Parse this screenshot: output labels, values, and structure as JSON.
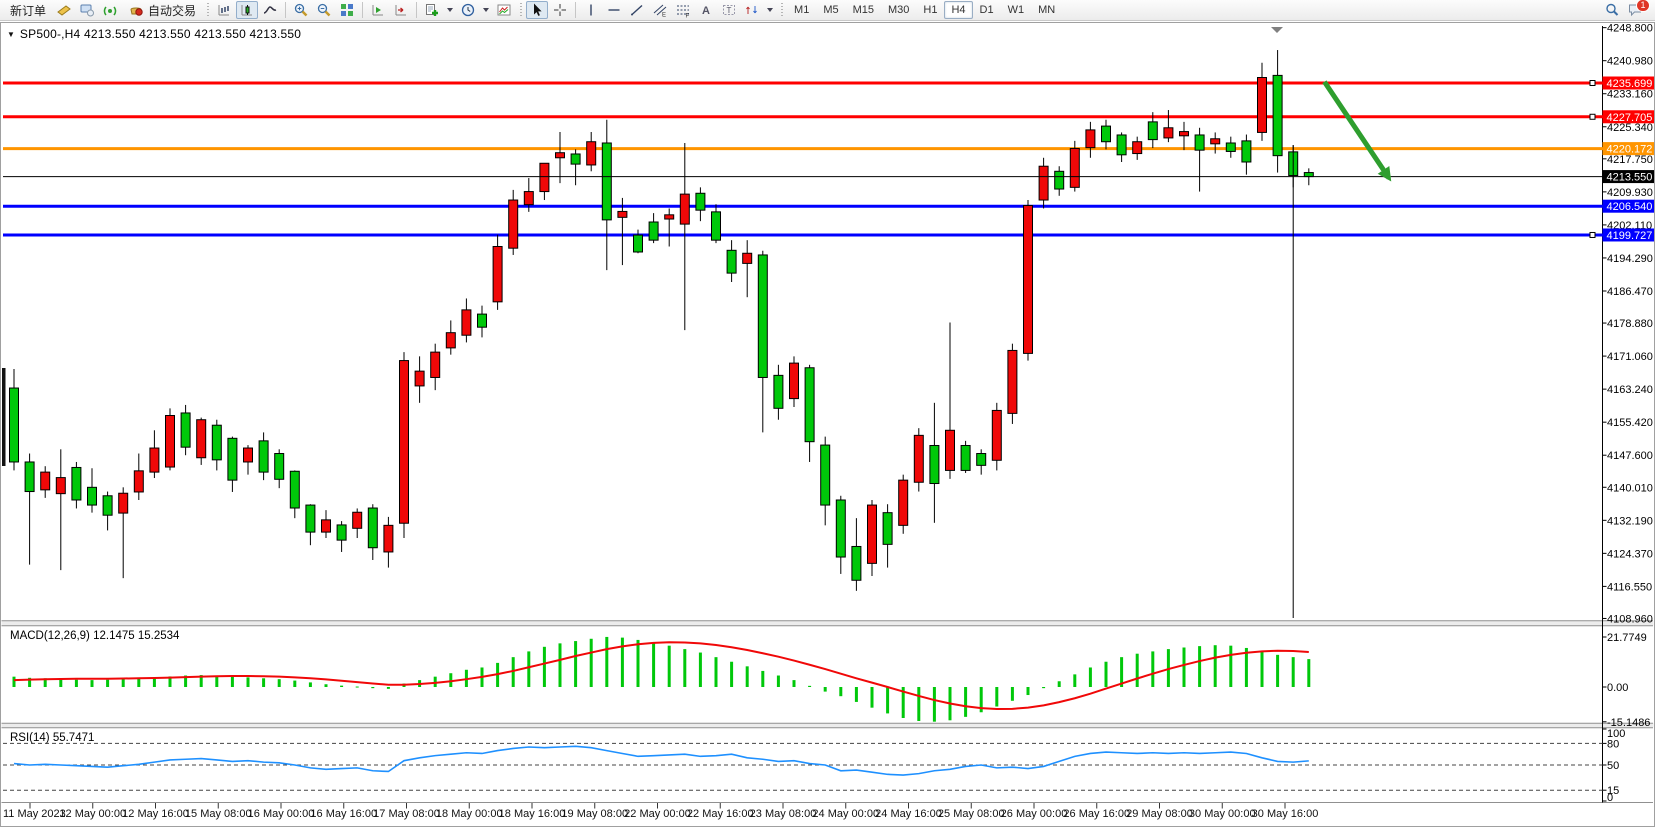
{
  "toolbar": {
    "new_order_label": "新订单",
    "auto_trading_label": "自动交易",
    "timeframes": [
      "M1",
      "M5",
      "M15",
      "M30",
      "H1",
      "H4",
      "D1",
      "W1",
      "MN"
    ],
    "active_timeframe": "H4",
    "notification_count": "1"
  },
  "window": {
    "title_symbol": "SP500-,H4",
    "title_ohlc": "4213.550 4213.550 4213.550 4213.550"
  },
  "chart_data": {
    "type": "candlestick",
    "symbol": "SP500-",
    "timeframe": "H4",
    "color_convention": "red = bullish, green = bearish (CN convention)",
    "colors": {
      "up": "#f00808",
      "down": "#00c80a",
      "wick": "#000000",
      "macd_histogram": "#00c80a",
      "macd_signal": "#f00808",
      "rsi_line": "#1e90ff"
    },
    "price_axis_ticks": [
      "4248.800",
      "4240.980",
      "4233.160",
      "4225.340",
      "4217.750",
      "4209.930",
      "4202.110",
      "4194.290",
      "4186.470",
      "4178.880",
      "4171.060",
      "4163.240",
      "4155.420",
      "4147.600",
      "4140.010",
      "4132.190",
      "4124.370",
      "4116.550",
      "4108.960"
    ],
    "time_axis_labels": [
      "11 May 2023",
      "12 May 00:00",
      "12 May 16:00",
      "15 May 08:00",
      "16 May 00:00",
      "16 May 16:00",
      "17 May 08:00",
      "18 May 00:00",
      "18 May 16:00",
      "19 May 08:00",
      "22 May 00:00",
      "22 May 16:00",
      "23 May 08:00",
      "24 May 00:00",
      "24 May 16:00",
      "25 May 08:00",
      "26 May 00:00",
      "26 May 16:00",
      "29 May 08:00",
      "30 May 00:00",
      "30 May 16:00"
    ],
    "candles_ohlc": [
      [
        4163.5,
        4168.0,
        4144.0,
        4146.0
      ],
      [
        4146.0,
        4148.0,
        4121.7,
        4139.0
      ],
      [
        4139.4,
        4145.0,
        4137.5,
        4143.6
      ],
      [
        4138.5,
        4149.0,
        4120.4,
        4142.3
      ],
      [
        4144.7,
        4146.0,
        4135.0,
        4137.0
      ],
      [
        4140.0,
        4144.5,
        4134.0,
        4135.8
      ],
      [
        4138.0,
        4139.0,
        4129.8,
        4133.4
      ],
      [
        4133.9,
        4140.0,
        4118.5,
        4138.6
      ],
      [
        4138.9,
        4148.0,
        4137.0,
        4143.9
      ],
      [
        4143.6,
        4153.5,
        4142.2,
        4149.3
      ],
      [
        4144.8,
        4158.7,
        4144.0,
        4157.0
      ],
      [
        4157.6,
        4159.5,
        4147.6,
        4149.5
      ],
      [
        4147.0,
        4156.5,
        4145.3,
        4156.0
      ],
      [
        4154.7,
        4156.0,
        4144.0,
        4146.5
      ],
      [
        4151.6,
        4152.0,
        4138.9,
        4141.7
      ],
      [
        4146.0,
        4150.0,
        4143.0,
        4149.3
      ],
      [
        4151.0,
        4153.0,
        4141.7,
        4143.6
      ],
      [
        4148.0,
        4149.0,
        4139.8,
        4141.9
      ],
      [
        4143.8,
        4144.0,
        4132.7,
        4135.1
      ],
      [
        4135.8,
        4136.0,
        4126.3,
        4129.4
      ],
      [
        4129.4,
        4134.6,
        4128.0,
        4132.3
      ],
      [
        4131.1,
        4132.0,
        4124.7,
        4127.5
      ],
      [
        4130.3,
        4135.0,
        4128.0,
        4134.1
      ],
      [
        4135.1,
        4136.0,
        4122.8,
        4125.7
      ],
      [
        4124.7,
        4133.0,
        4121.0,
        4131.0
      ],
      [
        4131.5,
        4172.0,
        4128.0,
        4170.0
      ],
      [
        4164.0,
        4171.0,
        4160.0,
        4167.5
      ],
      [
        4166.0,
        4174.0,
        4163.0,
        4172.0
      ],
      [
        4173.0,
        4179.5,
        4171.4,
        4176.6
      ],
      [
        4176.0,
        4184.7,
        4174.3,
        4182.0
      ],
      [
        4181.0,
        4183.0,
        4175.5,
        4177.9
      ],
      [
        4183.9,
        4199.8,
        4182.0,
        4197.0
      ],
      [
        4196.6,
        4210.4,
        4195.0,
        4208.0
      ],
      [
        4206.9,
        4213.2,
        4205.2,
        4210.0
      ],
      [
        4210.0,
        4216.7,
        4208.0,
        4216.7
      ],
      [
        4218.0,
        4224.1,
        4212.0,
        4219.2
      ],
      [
        4218.9,
        4220.0,
        4211.5,
        4216.5
      ],
      [
        4216.3,
        4224.1,
        4214.8,
        4221.8
      ],
      [
        4221.5,
        4227.0,
        4191.4,
        4203.3
      ],
      [
        4203.9,
        4208.5,
        4192.6,
        4205.3
      ],
      [
        4199.7,
        4201.0,
        4195.4,
        4195.7
      ],
      [
        4202.8,
        4204.9,
        4197.8,
        4198.5
      ],
      [
        4203.5,
        4206.0,
        4197.0,
        4204.5
      ],
      [
        4202.3,
        4221.5,
        4177.2,
        4209.4
      ],
      [
        4209.6,
        4211.0,
        4203.0,
        4205.6
      ],
      [
        4205.2,
        4207.0,
        4197.8,
        4198.5
      ],
      [
        4196.1,
        4198.5,
        4188.6,
        4190.7
      ],
      [
        4193.0,
        4198.5,
        4185.0,
        4195.4
      ],
      [
        4195.0,
        4196.0,
        4153.0,
        4166.0
      ],
      [
        4166.5,
        4169.0,
        4156.0,
        4158.7
      ],
      [
        4161.0,
        4171.0,
        4159.0,
        4169.4
      ],
      [
        4168.3,
        4169.0,
        4146.0,
        4150.8
      ],
      [
        4150.0,
        4152.0,
        4131.0,
        4135.8
      ],
      [
        4137.0,
        4138.0,
        4119.5,
        4123.5
      ],
      [
        4126.0,
        4132.7,
        4115.5,
        4118.0
      ],
      [
        4122.0,
        4137.0,
        4119.0,
        4135.8
      ],
      [
        4134.0,
        4136.0,
        4121.0,
        4126.5
      ],
      [
        4131.0,
        4143.0,
        4129.0,
        4141.7
      ],
      [
        4141.2,
        4154.0,
        4139.0,
        4152.3
      ],
      [
        4149.9,
        4160.0,
        4131.6,
        4140.9
      ],
      [
        4144.0,
        4179.0,
        4142.0,
        4153.5
      ],
      [
        4149.9,
        4151.0,
        4143.4,
        4144.0
      ],
      [
        4148.0,
        4149.0,
        4143.0,
        4145.2
      ],
      [
        4146.4,
        4160.0,
        4144.0,
        4158.2
      ],
      [
        4157.5,
        4174.0,
        4155.0,
        4172.4
      ],
      [
        4171.7,
        4208.0,
        4170.0,
        4206.7
      ],
      [
        4208.0,
        4218.0,
        4206.0,
        4216.0
      ],
      [
        4214.8,
        4216.0,
        4209.0,
        4210.6
      ],
      [
        4211.0,
        4222.0,
        4210.0,
        4220.2
      ],
      [
        4220.4,
        4226.5,
        4218.0,
        4224.6
      ],
      [
        4225.5,
        4227.0,
        4220.0,
        4221.8
      ],
      [
        4223.4,
        4224.0,
        4217.0,
        4218.7
      ],
      [
        4219.0,
        4223.0,
        4217.5,
        4221.8
      ],
      [
        4226.5,
        4228.8,
        4220.3,
        4222.3
      ],
      [
        4222.7,
        4229.3,
        4221.7,
        4225.1
      ],
      [
        4223.2,
        4226.5,
        4219.8,
        4224.2
      ],
      [
        4223.4,
        4225.1,
        4210.0,
        4219.8
      ],
      [
        4221.3,
        4224.0,
        4219.0,
        4222.5
      ],
      [
        4221.5,
        4223.0,
        4218.0,
        4219.5
      ],
      [
        4222.0,
        4223.5,
        4214.0,
        4217.0
      ],
      [
        4224.0,
        4240.5,
        4222.0,
        4237.0
      ],
      [
        4237.5,
        4243.5,
        4214.5,
        4218.5
      ],
      [
        4219.4,
        4221.0,
        4211.0,
        4213.8
      ],
      [
        4214.5,
        4215.5,
        4211.5,
        4213.55
      ]
    ],
    "current_price": {
      "value": 4213.55,
      "label": "4213.550",
      "color": "#000000"
    },
    "horizontal_lines": [
      {
        "price": 4235.699,
        "label": "4235.699",
        "color": "#ff0000",
        "selected": true
      },
      {
        "price": 4227.705,
        "label": "4227.705",
        "color": "#ff0000",
        "selected": true
      },
      {
        "price": 4220.172,
        "label": "4220.172",
        "color": "#ff9500",
        "selected": false
      },
      {
        "price": 4206.54,
        "label": "4206.540",
        "color": "#0000ff",
        "selected": false
      },
      {
        "price": 4199.727,
        "label": "4199.727",
        "color": "#0000ff",
        "selected": true
      }
    ],
    "vertical_line": {
      "bar": 82,
      "price_top": 4221,
      "price_bottom": 4109
    },
    "arrow_annotation": {
      "from_bar": 84,
      "from_price": 4236,
      "to_bar": 88.4,
      "to_price": 4212,
      "color": "#2e9e2e"
    },
    "macd": {
      "name": "MACD(12,26,9)",
      "main_value": "12.1475",
      "signal_value": "15.2534",
      "axis_ticks": [
        "21.7749",
        "0.00",
        "-15.1486"
      ],
      "histogram": [
        4.5,
        4.0,
        3.8,
        3.5,
        3.2,
        3.0,
        3.2,
        3.5,
        3.8,
        4.2,
        4.6,
        5.0,
        5.2,
        5.0,
        4.6,
        4.2,
        3.8,
        3.4,
        2.8,
        2.0,
        1.2,
        0.6,
        0.2,
        -0.5,
        -0.8,
        1.5,
        3.0,
        4.5,
        6.0,
        7.5,
        8.5,
        10.5,
        13.0,
        15.5,
        17.5,
        19.0,
        20.0,
        21.0,
        21.8,
        21.5,
        20.5,
        19.5,
        18.0,
        16.5,
        15.0,
        13.0,
        11.0,
        9.0,
        7.0,
        5.0,
        3.0,
        0.5,
        -2.0,
        -4.0,
        -6.5,
        -9.0,
        -11.5,
        -13.5,
        -14.8,
        -15.1,
        -14.5,
        -13.0,
        -11.0,
        -8.5,
        -6.0,
        -3.5,
        -0.5,
        2.5,
        5.5,
        8.5,
        11.0,
        13.0,
        14.5,
        15.5,
        16.5,
        17.2,
        17.8,
        18.2,
        18.0,
        17.0,
        15.5,
        14.0,
        13.0,
        12.15
      ],
      "signal": [
        3.0,
        3.2,
        3.4,
        3.5,
        3.6,
        3.6,
        3.6,
        3.7,
        3.8,
        3.9,
        4.1,
        4.3,
        4.5,
        4.7,
        4.8,
        4.8,
        4.7,
        4.5,
        4.2,
        3.8,
        3.3,
        2.7,
        2.1,
        1.5,
        1.0,
        1.0,
        1.3,
        1.8,
        2.5,
        3.4,
        4.4,
        5.6,
        7.0,
        8.6,
        10.2,
        11.8,
        13.5,
        15.0,
        16.5,
        17.7,
        18.6,
        19.2,
        19.5,
        19.4,
        19.0,
        18.3,
        17.3,
        16.1,
        14.7,
        13.2,
        11.5,
        9.7,
        7.8,
        5.8,
        3.8,
        1.9,
        0.0,
        -2.0,
        -3.9,
        -5.7,
        -7.2,
        -8.4,
        -9.2,
        -9.6,
        -9.5,
        -9.0,
        -8.0,
        -6.6,
        -4.9,
        -2.9,
        -0.7,
        1.5,
        3.7,
        5.8,
        7.8,
        9.6,
        11.3,
        12.8,
        14.0,
        14.9,
        15.5,
        15.8,
        15.7,
        15.25
      ]
    },
    "rsi": {
      "name": "RSI(14)",
      "value": "55.7471",
      "axis_ticks": [
        "100",
        "80",
        "50",
        "15",
        "0"
      ],
      "levels": [
        80,
        50,
        15
      ],
      "values": [
        52,
        50,
        51,
        50,
        49,
        48,
        47,
        49,
        51,
        54,
        57,
        58,
        59,
        57,
        55,
        56,
        54,
        53,
        50,
        46,
        44,
        45,
        46,
        42,
        41,
        56,
        60,
        63,
        65,
        67,
        66,
        70,
        73,
        75,
        74,
        75,
        76,
        74,
        70,
        66,
        62,
        63,
        64,
        65,
        62,
        63,
        65,
        60,
        58,
        55,
        56,
        52,
        50,
        42,
        43,
        40,
        37,
        36,
        38,
        42,
        44,
        48,
        50,
        46,
        47,
        45,
        48,
        55,
        62,
        66,
        68,
        67,
        66,
        67,
        66,
        67,
        66,
        67,
        68,
        66,
        60,
        55,
        54,
        55.75
      ]
    }
  }
}
